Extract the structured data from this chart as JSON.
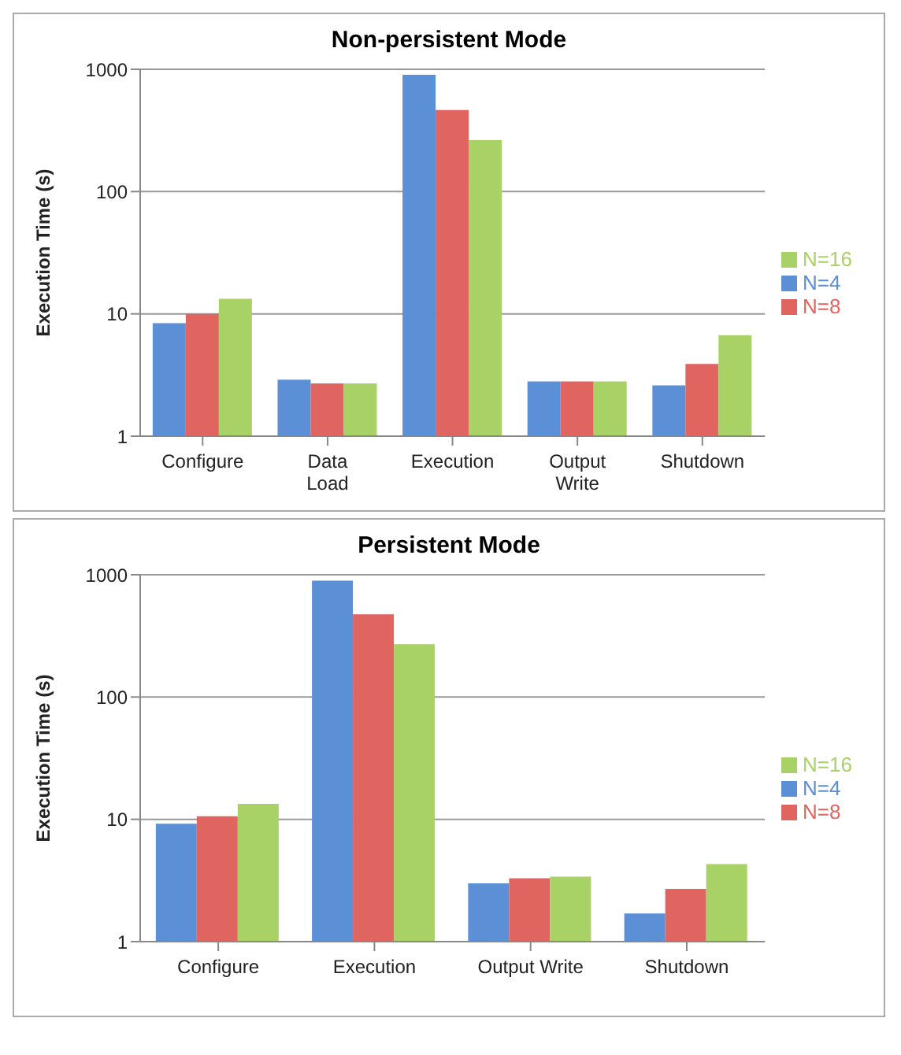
{
  "chart_data": [
    {
      "type": "bar",
      "title": "Non-persistent Mode",
      "ylabel": "Execution Time (s)",
      "categories": [
        "Configure",
        "Data Load",
        "Execution",
        "Output Write",
        "Shutdown"
      ],
      "series": [
        {
          "name": "N=4",
          "color": "#5b8fd6",
          "values": [
            8.4,
            2.9,
            900,
            2.8,
            2.6
          ]
        },
        {
          "name": "N=8",
          "color": "#e06460",
          "values": [
            10,
            2.7,
            465,
            2.8,
            3.9
          ]
        },
        {
          "name": "N=16",
          "color": "#a9d266",
          "values": [
            13.3,
            2.7,
            263,
            2.8,
            6.7
          ]
        }
      ],
      "log": "y",
      "ylim": [
        1,
        1000
      ],
      "yticks": [
        1,
        10,
        100,
        1000
      ],
      "grid": "y",
      "legend": "right"
    },
    {
      "type": "bar",
      "title": "Persistent Mode",
      "ylabel": "Execution Time (s)",
      "categories": [
        "Configure",
        "Execution",
        "Output Write",
        "Shutdown"
      ],
      "series": [
        {
          "name": "N=4",
          "color": "#5b8fd6",
          "values": [
            9.2,
            895,
            3.0,
            1.7
          ]
        },
        {
          "name": "N=8",
          "color": "#e06460",
          "values": [
            10.6,
            475,
            3.3,
            2.7
          ]
        },
        {
          "name": "N=16",
          "color": "#a9d266",
          "values": [
            13.4,
            270,
            3.4,
            4.3
          ]
        }
      ],
      "log": "y",
      "ylim": [
        1,
        1000
      ],
      "yticks": [
        1,
        10,
        100,
        1000
      ],
      "grid": "y",
      "legend": "right"
    }
  ]
}
